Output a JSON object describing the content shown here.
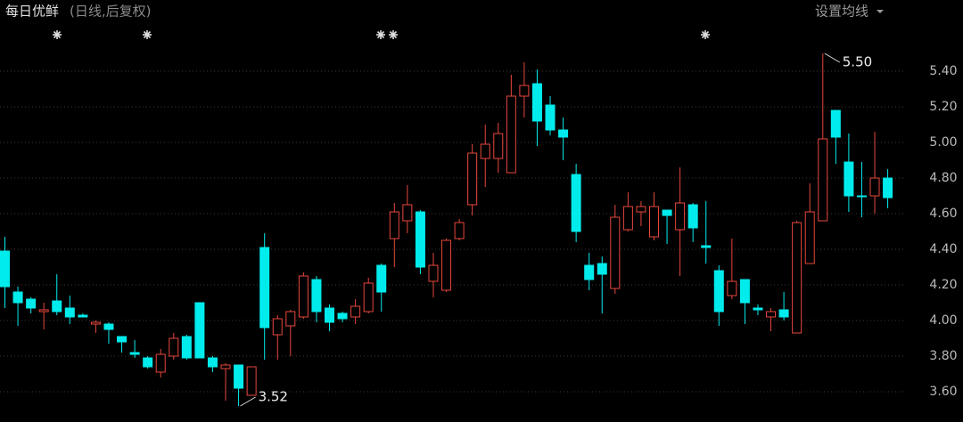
{
  "chart_data": {
    "type": "candlestick",
    "title": "每日优鲜",
    "subtitle": "(日线,后复权)",
    "button": "设置均线",
    "up_color": "#e8473d",
    "down_color": "#00ecec",
    "grid": true,
    "ylim": [
      3.43,
      5.66
    ],
    "yticks": [
      {
        "value": 3.6,
        "label": "3.60"
      },
      {
        "value": 3.8,
        "label": "3.80"
      },
      {
        "value": 4.0,
        "label": "4.00"
      },
      {
        "value": 4.2,
        "label": "4.20"
      },
      {
        "value": 4.4,
        "label": "4.40"
      },
      {
        "value": 4.6,
        "label": "4.60"
      },
      {
        "value": 4.8,
        "label": "4.80"
      },
      {
        "value": 5.0,
        "label": "5.00"
      },
      {
        "value": 5.2,
        "label": "5.20"
      },
      {
        "value": 5.4,
        "label": "5.40"
      }
    ],
    "open": [
      4.39,
      4.16,
      4.12,
      4.05,
      4.11,
      4.07,
      4.03,
      3.98,
      3.98,
      3.91,
      3.82,
      3.79,
      3.71,
      3.8,
      3.91,
      4.1,
      3.79,
      3.73,
      3.75,
      3.58,
      4.41,
      3.92,
      3.97,
      4.02,
      4.23,
      4.07,
      4.04,
      4.02,
      4.05,
      4.31,
      4.46,
      4.56,
      4.61,
      4.22,
      4.17,
      4.46,
      4.65,
      4.91,
      4.91,
      4.83,
      5.26,
      5.33,
      5.21,
      5.07,
      4.82,
      4.31,
      4.32,
      4.18,
      4.51,
      4.61,
      4.47,
      4.62,
      4.51,
      4.65,
      4.42,
      4.28,
      4.14,
      4.23,
      4.07,
      4.02,
      4.06,
      3.93,
      4.32,
      4.56,
      5.18,
      4.89,
      4.7,
      4.7,
      4.8
    ],
    "high": [
      4.47,
      4.19,
      4.13,
      4.1,
      4.26,
      4.14,
      4.04,
      4.0,
      3.99,
      3.91,
      3.89,
      3.8,
      3.84,
      3.93,
      3.92,
      4.1,
      3.8,
      3.76,
      3.75,
      3.74,
      4.49,
      4.03,
      4.06,
      4.27,
      4.25,
      4.09,
      4.05,
      4.12,
      4.24,
      4.32,
      4.66,
      4.76,
      4.62,
      4.38,
      4.46,
      4.57,
      4.99,
      5.1,
      5.11,
      5.38,
      5.45,
      5.41,
      5.26,
      5.14,
      4.88,
      4.38,
      4.36,
      4.65,
      4.72,
      4.67,
      4.72,
      4.62,
      4.86,
      4.66,
      4.67,
      4.31,
      4.46,
      4.23,
      4.09,
      4.07,
      4.16,
      4.56,
      4.77,
      5.5,
      5.18,
      5.05,
      4.89,
      5.06,
      4.85
    ],
    "low": [
      4.07,
      3.97,
      4.04,
      3.95,
      4.03,
      3.98,
      4.02,
      3.93,
      3.87,
      3.82,
      3.79,
      3.73,
      3.68,
      3.78,
      3.78,
      3.79,
      3.71,
      3.55,
      3.52,
      3.58,
      3.78,
      3.78,
      3.8,
      4.01,
      3.99,
      3.94,
      3.99,
      3.98,
      4.04,
      4.05,
      4.3,
      4.49,
      4.26,
      4.13,
      4.16,
      4.45,
      4.59,
      4.75,
      4.83,
      4.83,
      5.14,
      4.98,
      5.04,
      4.9,
      4.44,
      4.17,
      4.04,
      4.15,
      4.5,
      4.53,
      4.45,
      4.43,
      4.25,
      4.44,
      4.32,
      3.97,
      4.12,
      3.98,
      4.03,
      3.94,
      4.0,
      3.93,
      4.32,
      4.56,
      4.88,
      4.61,
      4.58,
      4.6,
      4.63
    ],
    "close": [
      4.19,
      4.1,
      4.07,
      4.06,
      4.05,
      4.02,
      4.02,
      3.99,
      3.95,
      3.88,
      3.81,
      3.74,
      3.81,
      3.9,
      3.79,
      3.79,
      3.74,
      3.75,
      3.62,
      3.74,
      3.96,
      4.01,
      4.05,
      4.25,
      4.05,
      3.99,
      4.01,
      4.08,
      4.21,
      4.16,
      4.61,
      4.65,
      4.3,
      4.31,
      4.45,
      4.55,
      4.94,
      4.99,
      5.05,
      5.26,
      5.32,
      5.12,
      5.07,
      5.03,
      4.5,
      4.23,
      4.26,
      4.58,
      4.64,
      4.64,
      4.64,
      4.59,
      4.66,
      4.52,
      4.41,
      4.05,
      4.22,
      4.1,
      4.06,
      4.05,
      4.02,
      4.55,
      4.61,
      5.02,
      5.03,
      4.7,
      4.7,
      4.8,
      4.69
    ],
    "annotations": [
      {
        "value": 5.5,
        "label": "5.50",
        "at": "high"
      },
      {
        "value": 3.52,
        "label": "3.52",
        "at": "low"
      }
    ]
  }
}
